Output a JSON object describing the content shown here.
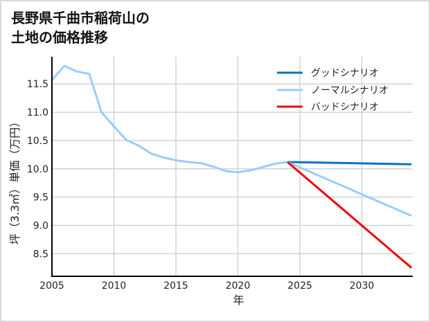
{
  "title": {
    "line1": "長野県千曲市稲荷山の",
    "line2": "土地の価格推移"
  },
  "colors": {
    "good": "#0a72c4",
    "normal": "#99ccff",
    "bad": "#ee0000",
    "grid": "#d3d3d3",
    "axis": "#000000"
  },
  "chart_data": {
    "type": "line",
    "title": "長野県千曲市稲荷山の土地の価格推移",
    "xlabel": "年",
    "ylabel": "坪（3.3㎡）単価（万円）",
    "xlim": [
      2005,
      2034.1
    ],
    "ylim": [
      8.1,
      11.98
    ],
    "xticks": [
      2005,
      2010,
      2015,
      2020,
      2025,
      2030
    ],
    "yticks": [
      8.5,
      9.0,
      9.5,
      10.0,
      10.5,
      11.0,
      11.5
    ],
    "ytick_labels": [
      "8.5",
      "9.0",
      "9.5",
      "10.0",
      "10.5",
      "11.0",
      "11.5"
    ],
    "grid": true,
    "legend_position": "upper right",
    "series": [
      {
        "name": "グッドシナリオ",
        "color": "#0a72c4",
        "x": [
          2024,
          2034
        ],
        "values": [
          10.12,
          10.08
        ]
      },
      {
        "name": "ノーマルシナリオ",
        "color": "#99ccff",
        "x": [
          2005,
          2006,
          2007,
          2008,
          2009,
          2010,
          2011,
          2012,
          2013,
          2014,
          2015,
          2016,
          2017,
          2018,
          2019,
          2020,
          2021,
          2022,
          2023,
          2024,
          2034
        ],
        "values": [
          11.57,
          11.82,
          11.72,
          11.68,
          11.0,
          10.75,
          10.51,
          10.41,
          10.27,
          10.2,
          10.15,
          10.12,
          10.1,
          10.04,
          9.96,
          9.94,
          9.97,
          10.03,
          10.09,
          10.12,
          9.17
        ]
      },
      {
        "name": "バッドシナリオ",
        "color": "#ee0000",
        "x": [
          2024,
          2034
        ],
        "values": [
          10.12,
          8.25
        ]
      }
    ]
  }
}
